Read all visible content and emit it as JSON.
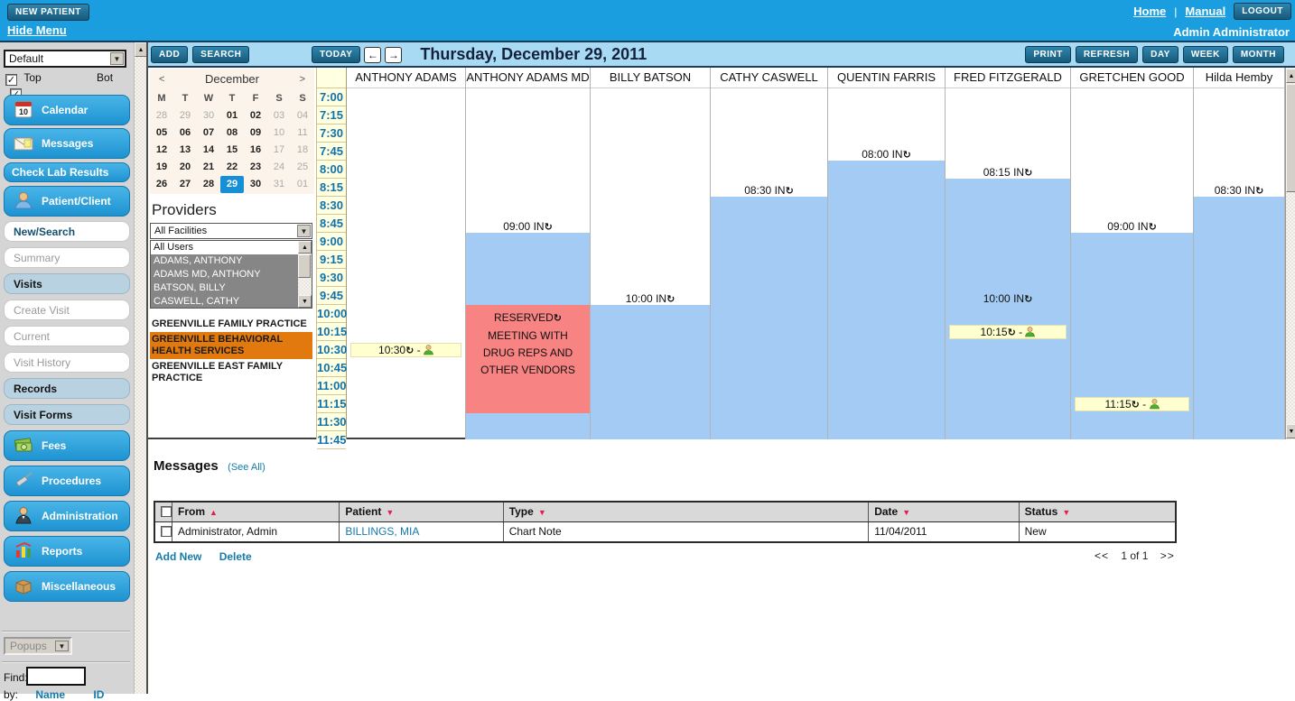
{
  "topbar": {
    "new_patient": "NEW PATIENT",
    "hide_menu": "Hide Menu",
    "home": "Home",
    "separator": "|",
    "manual": "Manual",
    "logout": "LOGOUT",
    "user": "Admin Administrator"
  },
  "sidebar": {
    "profile_select_value": "Default",
    "top_checkbox_label": "Top",
    "bot_checkbox_label": "Bot",
    "checkmark": "✓",
    "buttons": [
      {
        "label": "Calendar",
        "variant": "primary",
        "icon": "calendar-icon"
      },
      {
        "label": "Messages",
        "variant": "primary",
        "icon": "messages-icon"
      },
      {
        "label": "Check Lab Results",
        "variant": "primary-plain",
        "icon": null
      },
      {
        "label": "Patient/Client",
        "variant": "primary",
        "icon": "patient-icon"
      },
      {
        "label": "New/Search",
        "variant": "white-accent",
        "icon": null
      },
      {
        "label": "Summary",
        "variant": "white-muted",
        "icon": null
      },
      {
        "label": "Visits",
        "variant": "lightblue",
        "icon": null
      },
      {
        "label": "Create Visit",
        "variant": "white-muted",
        "icon": null
      },
      {
        "label": "Current",
        "variant": "white-muted",
        "icon": null
      },
      {
        "label": "Visit History",
        "variant": "white-muted",
        "icon": null
      },
      {
        "label": "Records",
        "variant": "lightblue",
        "icon": null
      },
      {
        "label": "Visit Forms",
        "variant": "lightblue",
        "icon": null
      },
      {
        "label": "Fees",
        "variant": "primary",
        "icon": "fees-icon"
      },
      {
        "label": "Procedures",
        "variant": "primary",
        "icon": "procedures-icon"
      },
      {
        "label": "Administration",
        "variant": "primary",
        "icon": "administration-icon"
      },
      {
        "label": "Reports",
        "variant": "primary",
        "icon": "reports-icon"
      },
      {
        "label": "Miscellaneous",
        "variant": "primary",
        "icon": "miscellaneous-icon"
      }
    ],
    "popups_select_value": "Popups",
    "find_label": "Find:",
    "find_value": "",
    "by_label": "by:",
    "by_name_link": "Name",
    "by_id_link": "ID"
  },
  "toolbar": {
    "add": "ADD",
    "search": "SEARCH",
    "today": "TODAY",
    "prev": "←",
    "next": "→",
    "title": "Thursday, December 29, 2011",
    "print": "PRINT",
    "refresh": "REFRESH",
    "day": "DAY",
    "week": "WEEK",
    "month": "MONTH"
  },
  "mini_calendar": {
    "month": "December",
    "prev": "<",
    "next": ">",
    "day_headers": [
      "M",
      "T",
      "W",
      "T",
      "F",
      "S",
      "S"
    ],
    "weeks": [
      [
        {
          "d": "28",
          "muted": true
        },
        {
          "d": "29",
          "muted": true
        },
        {
          "d": "30",
          "muted": true
        },
        {
          "d": "01",
          "muted": false
        },
        {
          "d": "02",
          "muted": false
        },
        {
          "d": "03",
          "muted": true
        },
        {
          "d": "04",
          "muted": true
        }
      ],
      [
        {
          "d": "05",
          "muted": false
        },
        {
          "d": "06",
          "muted": false
        },
        {
          "d": "07",
          "muted": false
        },
        {
          "d": "08",
          "muted": false
        },
        {
          "d": "09",
          "muted": false
        },
        {
          "d": "10",
          "muted": true
        },
        {
          "d": "11",
          "muted": true
        }
      ],
      [
        {
          "d": "12",
          "muted": false
        },
        {
          "d": "13",
          "muted": false
        },
        {
          "d": "14",
          "muted": false
        },
        {
          "d": "15",
          "muted": false
        },
        {
          "d": "16",
          "muted": false
        },
        {
          "d": "17",
          "muted": true
        },
        {
          "d": "18",
          "muted": true
        }
      ],
      [
        {
          "d": "19",
          "muted": false
        },
        {
          "d": "20",
          "muted": false
        },
        {
          "d": "21",
          "muted": false
        },
        {
          "d": "22",
          "muted": false
        },
        {
          "d": "23",
          "muted": false
        },
        {
          "d": "24",
          "muted": true
        },
        {
          "d": "25",
          "muted": true
        }
      ],
      [
        {
          "d": "26",
          "muted": false
        },
        {
          "d": "27",
          "muted": false
        },
        {
          "d": "28",
          "muted": false
        },
        {
          "d": "29",
          "muted": false,
          "selected": true
        },
        {
          "d": "30",
          "muted": false
        },
        {
          "d": "31",
          "muted": true
        },
        {
          "d": "01",
          "muted": true
        }
      ]
    ],
    "selected_day": "29"
  },
  "providers": {
    "heading": "Providers",
    "facility_select_value": "All Facilities",
    "user_list": [
      {
        "name": "All Users",
        "selected": false
      },
      {
        "name": "ADAMS, ANTHONY",
        "selected": true
      },
      {
        "name": "ADAMS MD, ANTHONY",
        "selected": true
      },
      {
        "name": "BATSON, BILLY",
        "selected": true
      },
      {
        "name": "CASWELL, CATHY",
        "selected": true
      }
    ],
    "facilities": [
      {
        "name": "GREENVILLE FAMILY PRACTICE",
        "highlighted": false
      },
      {
        "name": "GREENVILLE BEHAVIORAL HEALTH SERVICES",
        "highlighted": true
      },
      {
        "name": "GREENVILLE EAST FAMILY PRACTICE",
        "highlighted": false
      }
    ]
  },
  "schedule": {
    "times": [
      "7:00",
      "7:15",
      "7:30",
      "7:45",
      "8:00",
      "8:15",
      "8:30",
      "8:45",
      "9:00",
      "9:15",
      "9:30",
      "9:45",
      "10:00",
      "10:15",
      "10:30",
      "10:45",
      "11:00",
      "11:15",
      "11:30",
      "11:45"
    ],
    "columns": [
      {
        "header": "ANTHONY ADAMS",
        "events": [
          {
            "type": "note",
            "time": "10:30",
            "label": "10:30"
          }
        ]
      },
      {
        "header": "ANTHONY ADAMS MD",
        "events": [
          {
            "type": "checkin",
            "time": "09:00",
            "label": "09:00 IN"
          },
          {
            "type": "fill",
            "from": "09:00",
            "to": "10:00"
          },
          {
            "type": "reserved",
            "from": "10:00",
            "to": "11:30",
            "label": "RESERVED",
            "description": "MEETING WITH DRUG REPS AND OTHER VENDORS"
          },
          {
            "type": "fill",
            "from": "11:30",
            "to": "end"
          }
        ]
      },
      {
        "header": "BILLY BATSON",
        "events": [
          {
            "type": "checkin",
            "time": "10:00",
            "label": "10:00 IN"
          },
          {
            "type": "fill",
            "from": "10:00",
            "to": "end"
          }
        ]
      },
      {
        "header": "CATHY CASWELL",
        "events": [
          {
            "type": "checkin",
            "time": "08:30",
            "label": "08:30 IN"
          },
          {
            "type": "fill",
            "from": "08:30",
            "to": "end"
          }
        ]
      },
      {
        "header": "QUENTIN FARRIS",
        "events": [
          {
            "type": "checkin",
            "time": "08:00",
            "label": "08:00 IN"
          },
          {
            "type": "fill",
            "from": "08:00",
            "to": "end"
          }
        ]
      },
      {
        "header": "FRED FITZGERALD",
        "events": [
          {
            "type": "checkin",
            "time": "08:15",
            "label": "08:15 IN"
          },
          {
            "type": "fill",
            "from": "08:15",
            "to": "end"
          },
          {
            "type": "checkin",
            "time": "10:00",
            "label": "10:00 IN"
          },
          {
            "type": "note",
            "time": "10:15",
            "label": "10:15"
          }
        ]
      },
      {
        "header": "GRETCHEN GOOD",
        "events": [
          {
            "type": "checkin",
            "time": "09:00",
            "label": "09:00 IN"
          },
          {
            "type": "fill",
            "from": "09:00",
            "to": "end"
          },
          {
            "type": "note",
            "time": "11:15",
            "label": "11:15"
          }
        ]
      },
      {
        "header": "Hilda Hemby",
        "events": [
          {
            "type": "checkin",
            "time": "08:30",
            "label": "08:30 IN"
          },
          {
            "type": "fill",
            "from": "08:30",
            "to": "end"
          }
        ]
      }
    ]
  },
  "messages": {
    "title": "Messages",
    "see_all": "(See All)",
    "columns": [
      {
        "label": "From",
        "sort": "asc"
      },
      {
        "label": "Patient",
        "sort": "desc"
      },
      {
        "label": "Type",
        "sort": "desc"
      },
      {
        "label": "Date",
        "sort": "desc"
      },
      {
        "label": "Status",
        "sort": "desc"
      }
    ],
    "rows": [
      {
        "from": "Administrator, Admin",
        "patient": "BILLINGS, MIA",
        "type": "Chart Note",
        "date": "11/04/2011",
        "status": "New"
      }
    ],
    "add_new": "Add New",
    "delete": "Delete",
    "pager_prev": "<<",
    "pager_text": "1 of 1",
    "pager_next": ">>"
  },
  "colors": {
    "topbar_blue": "#1b9ee0",
    "toolbar_blue": "#a9daf3",
    "button_dark_teal": "#1e6a8e",
    "appointment_blue": "#a4cbf4",
    "reserved_red": "#f88383",
    "note_yellow": "#ffffcf",
    "time_rail_bg": "#ffffe1",
    "time_text": "#1172a9",
    "selected_day_blue": "#168fd7",
    "facility_highlight_orange": "#e1790e",
    "link_teal": "#147bab",
    "sort_arrow_red": "#e0204e"
  }
}
